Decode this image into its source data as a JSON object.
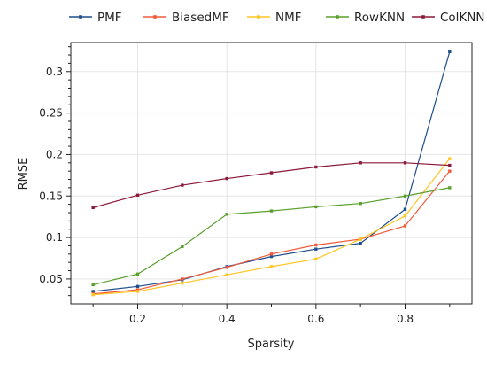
{
  "chart_data": {
    "type": "line",
    "xlabel": "Sparsity",
    "ylabel": "RMSE",
    "xlim": [
      0.05,
      0.95
    ],
    "ylim": [
      0.02,
      0.335
    ],
    "x_ticks": [
      0.2,
      0.4,
      0.6,
      0.8
    ],
    "x_tick_labels": [
      "0.2",
      "0.4",
      "0.6",
      "0.8"
    ],
    "y_ticks": [
      0.05,
      0.1,
      0.15,
      0.2,
      0.25,
      0.3
    ],
    "y_tick_labels": [
      "0.05",
      "0.1",
      "0.15",
      "0.2",
      "0.25",
      "0.3"
    ],
    "grid": true,
    "legend_position": "top",
    "x": [
      0.1,
      0.2,
      0.3,
      0.4,
      0.5,
      0.6,
      0.7,
      0.8,
      0.9
    ],
    "series": [
      {
        "name": "PMF",
        "color": "#1f4e8c",
        "values": [
          0.035,
          0.041,
          0.049,
          0.065,
          0.077,
          0.086,
          0.093,
          0.134,
          0.324
        ]
      },
      {
        "name": "BiasedMF",
        "color": "#f05a3a",
        "values": [
          0.032,
          0.037,
          0.05,
          0.064,
          0.08,
          0.091,
          0.098,
          0.114,
          0.18
        ]
      },
      {
        "name": "NMF",
        "color": "#ffc520",
        "values": [
          0.031,
          0.035,
          0.045,
          0.055,
          0.065,
          0.074,
          0.098,
          0.126,
          0.195
        ]
      },
      {
        "name": "RowKNN",
        "color": "#5aa02c",
        "values": [
          0.043,
          0.056,
          0.089,
          0.128,
          0.132,
          0.137,
          0.141,
          0.15,
          0.16
        ]
      },
      {
        "name": "ColKNN",
        "color": "#8b1a3a",
        "values": [
          0.136,
          0.151,
          0.163,
          0.171,
          0.178,
          0.185,
          0.19,
          0.19,
          0.187
        ]
      }
    ]
  }
}
